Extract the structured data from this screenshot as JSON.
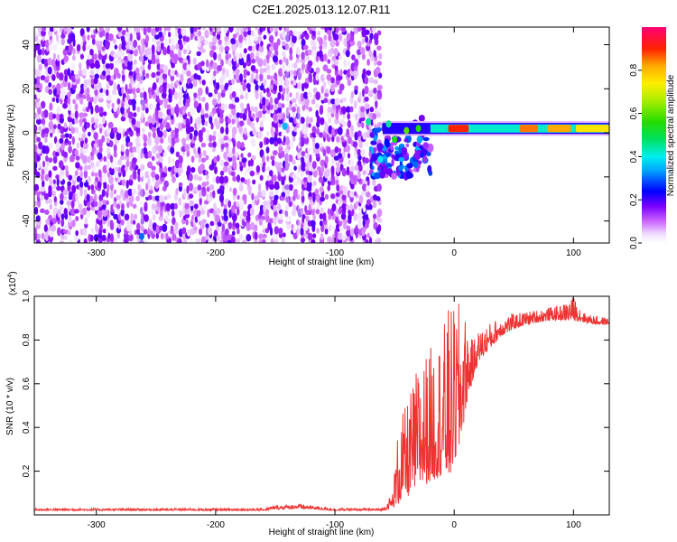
{
  "figure": {
    "title": "C2E1.2025.013.12.07.R11"
  },
  "chart_data": [
    {
      "type": "heatmap",
      "xlabel": "Height of straight line (km)",
      "ylabel": "Frequency (Hz)",
      "xlim": [
        -352,
        130
      ],
      "ylim": [
        -50,
        48
      ],
      "x_ticks": [
        -300,
        -200,
        -100,
        0,
        100
      ],
      "y_ticks": [
        -40,
        -20,
        0,
        20,
        40
      ],
      "x_tick_labels": [
        "-300",
        "-200",
        "-100",
        "0",
        "100"
      ],
      "y_tick_labels": [
        "-40",
        "-20",
        "0",
        "20",
        "40"
      ],
      "noise_region_x": [
        -352,
        -62
      ],
      "signal_line": {
        "x_start": -60,
        "x_end": 130,
        "frequency": 2,
        "halfwidth": 2.5
      },
      "cluster_region": {
        "x": [
          -70,
          -20
        ],
        "y": [
          -20,
          8
        ]
      },
      "hotspots": [
        {
          "x": -72,
          "y": 5,
          "value": 0.45
        },
        {
          "x": -55,
          "y": 4,
          "value": 0.45
        },
        {
          "x": -50,
          "y": -3,
          "value": 0.55
        },
        {
          "x": -40,
          "y": 1,
          "value": 0.6
        },
        {
          "x": -30,
          "y": 2,
          "value": 0.55
        },
        {
          "x": -62,
          "y": -12,
          "value": 0.4
        },
        {
          "x": -142,
          "y": 3,
          "value": 0.35
        },
        {
          "x": -262,
          "y": -47,
          "value": 0.3
        }
      ],
      "hot_segments": [
        {
          "x": [
            -5,
            12
          ],
          "value": 0.9
        },
        {
          "x": [
            55,
            70
          ],
          "value": 0.85
        },
        {
          "x": [
            78,
            98
          ],
          "value": 0.82
        },
        {
          "x": [
            102,
            130
          ],
          "value": 0.75
        }
      ],
      "colorbar": {
        "label": "Normalized spectral amplitude",
        "range": [
          0,
          1
        ],
        "ticks": [
          0.0,
          0.2,
          0.4,
          0.6,
          0.8
        ],
        "tick_labels": [
          "0.0",
          "0.2",
          "0.4",
          "0.6",
          "0.8"
        ]
      }
    },
    {
      "type": "line",
      "xlabel": "Height of straight line (km)",
      "ylabel": "SNR (10 * v/v)",
      "multiplier_label": "(x10",
      "multiplier_exponent": "4",
      "multiplier_close": ")",
      "xlim": [
        -352,
        130
      ],
      "ylim": [
        0,
        1.0
      ],
      "x_ticks": [
        -300,
        -200,
        -100,
        0,
        100
      ],
      "y_ticks": [
        0.2,
        0.4,
        0.6,
        0.8,
        1.0
      ],
      "x_tick_labels": [
        "-300",
        "-200",
        "-100",
        "0",
        "100"
      ],
      "y_tick_labels": [
        "0.2",
        "0.4",
        "0.6",
        "0.8",
        "1.0"
      ],
      "color": "#ee3333",
      "envelope": {
        "x": [
          -352,
          -160,
          -150,
          -130,
          -100,
          -60,
          -52,
          -46,
          -40,
          -30,
          -20,
          -10,
          -5,
          0,
          5,
          10,
          15,
          20,
          30,
          40,
          50,
          60,
          70,
          80,
          90,
          100,
          110,
          120,
          130
        ],
        "base": [
          0.02,
          0.02,
          0.025,
          0.03,
          0.02,
          0.02,
          0.03,
          0.05,
          0.08,
          0.12,
          0.15,
          0.18,
          0.15,
          0.23,
          0.3,
          0.5,
          0.6,
          0.7,
          0.76,
          0.82,
          0.85,
          0.87,
          0.88,
          0.89,
          0.89,
          0.89,
          0.88,
          0.87,
          0.87
        ],
        "top": [
          0.03,
          0.03,
          0.045,
          0.05,
          0.03,
          0.03,
          0.1,
          0.45,
          0.5,
          0.7,
          0.77,
          0.85,
          0.95,
          0.95,
          0.98,
          0.9,
          0.8,
          0.84,
          0.88,
          0.91,
          0.92,
          0.93,
          0.94,
          0.95,
          0.96,
          1.0,
          0.92,
          0.91,
          0.9
        ]
      }
    }
  ]
}
